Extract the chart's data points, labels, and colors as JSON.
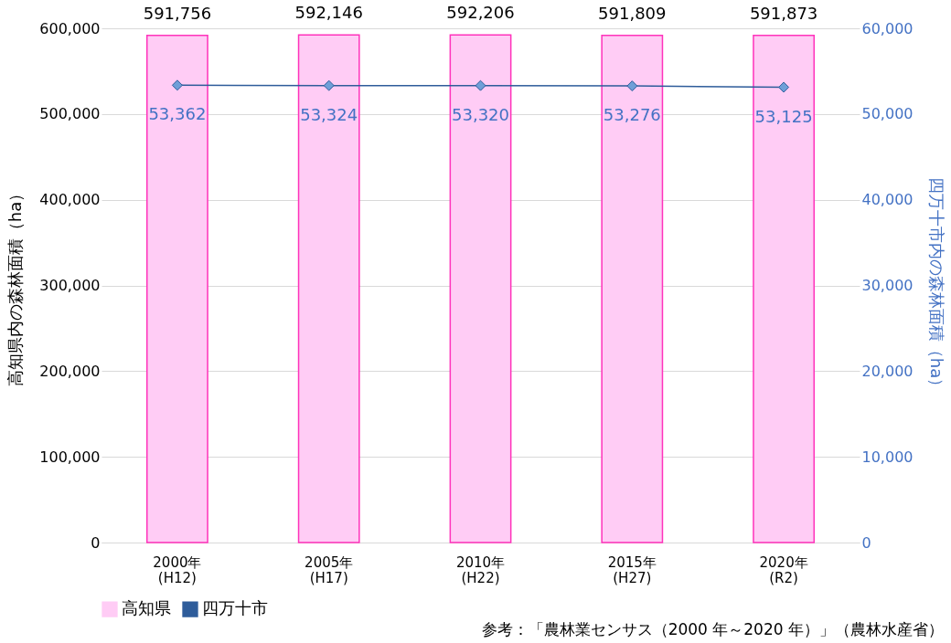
{
  "chart_data": {
    "type": "bar",
    "categories": [
      "2000年\n(H12)",
      "2005年\n(H17)",
      "2010年\n(H22)",
      "2015年\n(H27)",
      "2020年\n(R2)"
    ],
    "ylabel": "高知県内の森林面積（ha）",
    "y2label": "四万十市内の森林面積（ha）",
    "series": [
      {
        "name": "高知県",
        "color": "#ffccf5",
        "values": [
          591756,
          592146,
          592206,
          591809,
          591873
        ],
        "value_labels": [
          "591,756",
          "592,146",
          "592,206",
          "591,809",
          "591,873"
        ]
      },
      {
        "name": "四万十市",
        "type": "line",
        "axis": "y2",
        "color": "#2e5c9a",
        "marker": "diamond",
        "values": [
          53362,
          53324,
          53320,
          53276,
          53125
        ],
        "value_labels": [
          "53,362",
          "53,324",
          "53,320",
          "53,276",
          "53,125"
        ]
      }
    ],
    "ylim": [
      0,
      600000
    ],
    "yticks": [
      0,
      {
        "value": 100000,
        "label": "100,000"
      },
      {
        "value": 200000,
        "label": "200,000"
      },
      {
        "value": 300000,
        "label": "300,000"
      },
      {
        "value": 400000,
        "label": "400,000"
      },
      {
        "value": 500000,
        "label": "500,000"
      },
      {
        "value": 600000,
        "label": "600,000"
      }
    ],
    "y2lim": [
      0,
      60000
    ],
    "y2ticks": [
      0,
      {
        "value": 10000,
        "label": "10,000"
      },
      {
        "value": 20000,
        "label": "20,000"
      },
      {
        "value": 30000,
        "label": "30,000"
      },
      {
        "value": 40000,
        "label": "40,000"
      },
      {
        "value": 50000,
        "label": "50,000"
      },
      {
        "value": 60000,
        "label": "60,000"
      }
    ],
    "grid": "y",
    "legend": "bottom",
    "annotations": [
      "参考：「農林業センサス（2000 年～2020 年）」（農林水産省）"
    ]
  }
}
